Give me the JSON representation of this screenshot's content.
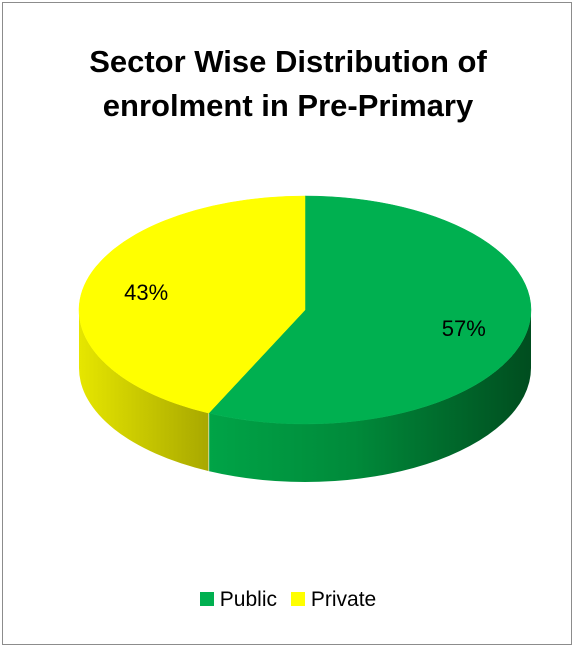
{
  "chart_data": {
    "type": "pie",
    "title": [
      "Sector Wise Distribution of",
      "enrolment in Pre-Primary"
    ],
    "series": [
      {
        "name": "Public",
        "value": 57,
        "label": "57%",
        "color": "#00b050",
        "dark": "#006b2c"
      },
      {
        "name": "Private",
        "value": 43,
        "label": "43%",
        "color": "#ffff00",
        "dark": "#c9c900"
      }
    ],
    "legend_position": "bottom",
    "style": "3d"
  }
}
